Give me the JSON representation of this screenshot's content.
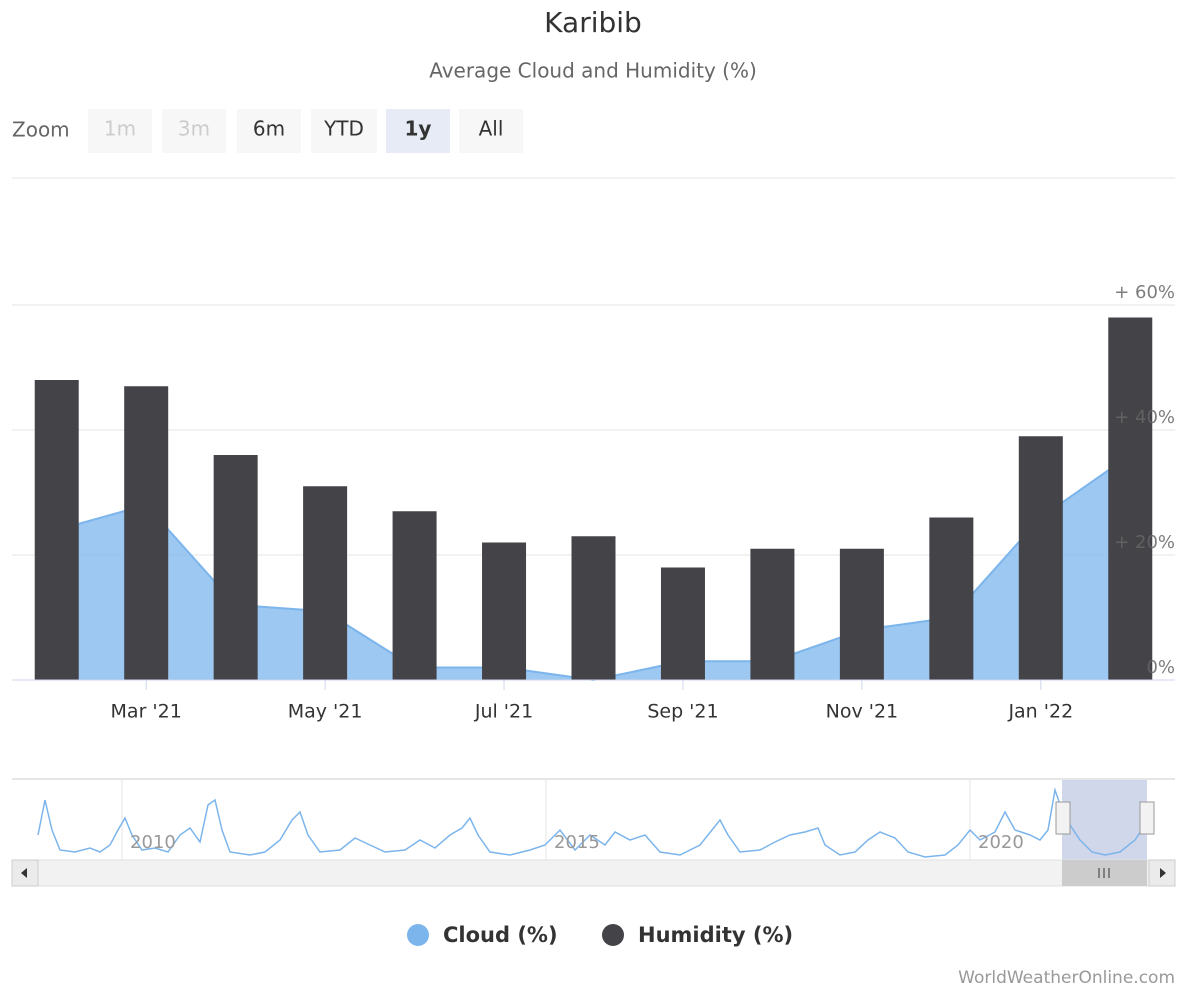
{
  "chart_data": {
    "type": "bar-area",
    "title": "Karibib",
    "subtitle": "Average Cloud and Humidity (%)",
    "categories": [
      null,
      "Mar '21",
      null,
      "May '21",
      null,
      "Jul '21",
      null,
      "Sep '21",
      null,
      "Nov '21",
      null,
      "Jan '22",
      null
    ],
    "series": [
      {
        "name": "Cloud (%)",
        "type": "area",
        "color": "#7cb5ec",
        "values": [
          24,
          28,
          12,
          11,
          2,
          2,
          0,
          3,
          3,
          8,
          10,
          26,
          36
        ]
      },
      {
        "name": "Humidity (%)",
        "type": "bar",
        "color": "#434348",
        "values": [
          48,
          47,
          36,
          31,
          27,
          22,
          23,
          18,
          21,
          21,
          26,
          39,
          58
        ]
      }
    ],
    "ylim": [
      0,
      60
    ],
    "yticks": [
      {
        "value": 0,
        "label": "0%"
      },
      {
        "value": 20,
        "label": "+ 20%"
      },
      {
        "value": 40,
        "label": "+ 40%"
      },
      {
        "value": 60,
        "label": "+ 60%"
      }
    ],
    "grid": true
  },
  "range_selector": {
    "label": "Zoom",
    "buttons": [
      "1m",
      "3m",
      "6m",
      "YTD",
      "1y",
      "All"
    ],
    "selected": 4,
    "disabled": [
      0,
      1
    ]
  },
  "navigator": {
    "labels": [
      "2010",
      "2015",
      "2020"
    ]
  },
  "credits": "WorldWeatherOnline.com"
}
